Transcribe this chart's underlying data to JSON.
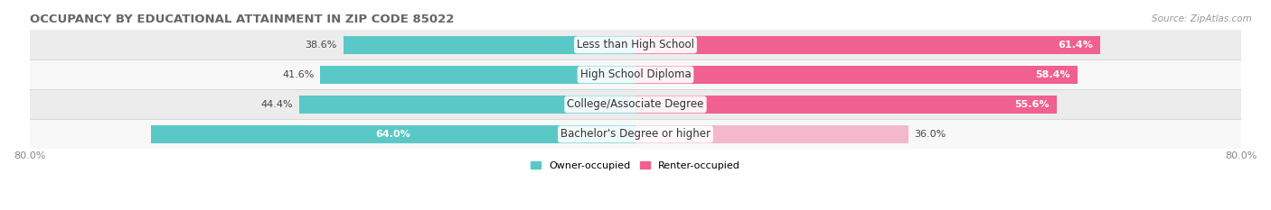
{
  "title": "OCCUPANCY BY EDUCATIONAL ATTAINMENT IN ZIP CODE 85022",
  "source": "Source: ZipAtlas.com",
  "categories": [
    "Less than High School",
    "High School Diploma",
    "College/Associate Degree",
    "Bachelor's Degree or higher"
  ],
  "owner_values": [
    38.6,
    41.6,
    44.4,
    64.0
  ],
  "renter_values": [
    61.4,
    58.4,
    55.6,
    36.0
  ],
  "owner_color": "#5BC8C8",
  "renter_color": "#F06090",
  "renter_color_last": "#F4B8CC",
  "title_fontsize": 9.5,
  "source_fontsize": 7.5,
  "label_fontsize": 8.5,
  "value_fontsize": 8,
  "tick_fontsize": 8,
  "xlim": 80.0,
  "legend_owner": "Owner-occupied",
  "legend_renter": "Renter-occupied",
  "bar_height": 0.62,
  "row_bg_colors": [
    "#ECECEC",
    "#F8F8F8",
    "#ECECEC",
    "#F8F8F8"
  ],
  "row_border_color": "#DDDDDD"
}
